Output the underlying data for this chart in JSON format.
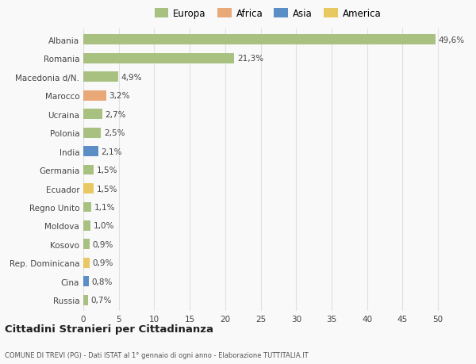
{
  "categories": [
    "Albania",
    "Romania",
    "Macedonia d/N.",
    "Marocco",
    "Ucraina",
    "Polonia",
    "India",
    "Germania",
    "Ecuador",
    "Regno Unito",
    "Moldova",
    "Kosovo",
    "Rep. Dominicana",
    "Cina",
    "Russia"
  ],
  "values": [
    49.6,
    21.3,
    4.9,
    3.2,
    2.7,
    2.5,
    2.1,
    1.5,
    1.5,
    1.1,
    1.0,
    0.9,
    0.9,
    0.8,
    0.7
  ],
  "labels": [
    "49,6%",
    "21,3%",
    "4,9%",
    "3,2%",
    "2,7%",
    "2,5%",
    "2,1%",
    "1,5%",
    "1,5%",
    "1,1%",
    "1,0%",
    "0,9%",
    "0,9%",
    "0,8%",
    "0,7%"
  ],
  "colors": [
    "#a8c080",
    "#a8c080",
    "#a8c080",
    "#e8a878",
    "#a8c080",
    "#a8c080",
    "#5b8ec4",
    "#a8c080",
    "#e8c860",
    "#a8c080",
    "#a8c080",
    "#a8c080",
    "#e8c860",
    "#5b8ec4",
    "#a8c080"
  ],
  "legend_labels": [
    "Europa",
    "Africa",
    "Asia",
    "America"
  ],
  "legend_colors": [
    "#a8c080",
    "#e8a878",
    "#5b8ec4",
    "#e8c860"
  ],
  "xlim": [
    0,
    52
  ],
  "xticks": [
    0,
    5,
    10,
    15,
    20,
    25,
    30,
    35,
    40,
    45,
    50
  ],
  "title1": "Cittadini Stranieri per Cittadinanza",
  "title2": "COMUNE DI TREVI (PG) - Dati ISTAT al 1° gennaio di ogni anno - Elaborazione TUTTITALIA.IT",
  "bg_color": "#f9f9f9",
  "grid_color": "#e0e0e0"
}
